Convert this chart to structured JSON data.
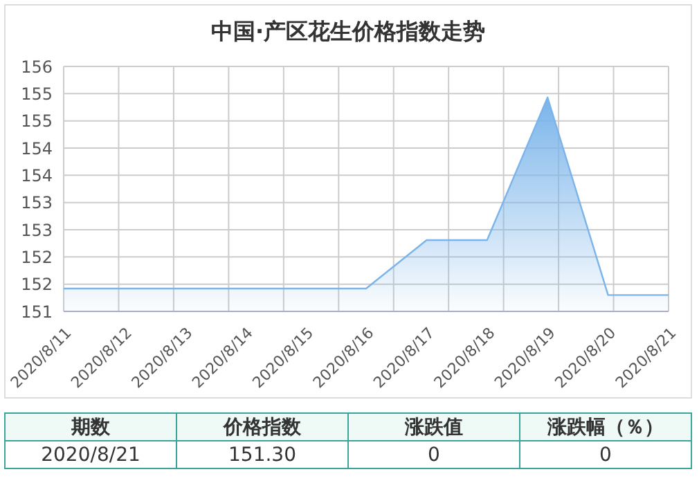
{
  "chart_data": {
    "type": "area",
    "title": "中国·产区花生价格指数走势",
    "categories": [
      "2020/8/11",
      "2020/8/12",
      "2020/8/13",
      "2020/8/14",
      "2020/8/15",
      "2020/8/16",
      "2020/8/17",
      "2020/8/18",
      "2020/8/19",
      "2020/8/20",
      "2020/8/21"
    ],
    "series": [
      {
        "color": "#7ab4ea",
        "values": [
          151.42,
          151.42,
          151.42,
          151.42,
          151.42,
          151.42,
          152.31,
          152.31,
          154.93,
          151.3,
          151.3
        ]
      }
    ],
    "ylim": [
      151,
      155.5
    ],
    "yticks": [
      151,
      {
        "value": 151.5,
        "label": "152"
      },
      152,
      {
        "value": 152.5,
        "label": "153"
      },
      153,
      {
        "value": 153.5,
        "label": "154"
      },
      154,
      {
        "value": 154.5,
        "label": "155"
      },
      155,
      {
        "value": 155.5,
        "label": "156"
      }
    ],
    "grid": true,
    "annotations": [
      "期数",
      "价格指数",
      "涨跌值",
      "涨跌幅（％）",
      "2020/8/21",
      "151.30",
      "0",
      "0"
    ]
  }
}
